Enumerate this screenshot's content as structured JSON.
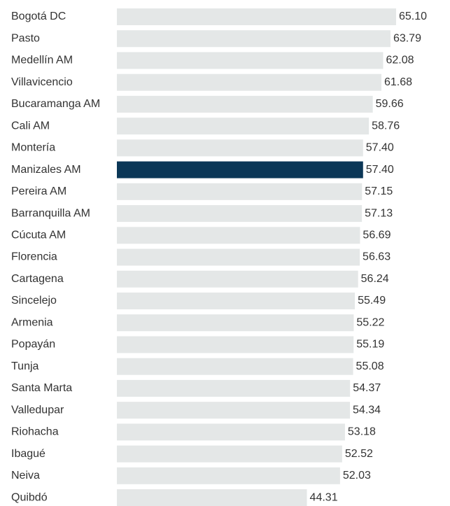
{
  "chart_data": {
    "type": "hbar",
    "categories": [
      "Bogotá DC",
      "Pasto",
      "Medellín AM",
      "Villavicencio",
      "Bucaramanga AM",
      "Cali AM",
      "Montería",
      "Manizales AM",
      "Pereira AM",
      "Barranquilla AM",
      "Cúcuta AM",
      "Florencia",
      "Cartagena",
      "Sincelejo",
      "Armenia",
      "Popayán",
      "Tunja",
      "Santa Marta",
      "Valledupar",
      "Riohacha",
      "Ibagué",
      "Neiva",
      "Quibdó"
    ],
    "values": [
      65.1,
      63.79,
      62.08,
      61.68,
      59.66,
      58.76,
      57.4,
      57.4,
      57.15,
      57.13,
      56.69,
      56.63,
      56.24,
      55.49,
      55.22,
      55.19,
      55.08,
      54.37,
      54.34,
      53.18,
      52.52,
      52.03,
      44.31
    ],
    "value_labels": [
      "65.10",
      "63.79",
      "62.08",
      "61.68",
      "59.66",
      "58.76",
      "57.40",
      "57.40",
      "57.15",
      "57.13",
      "56.69",
      "56.63",
      "56.24",
      "55.49",
      "55.22",
      "55.19",
      "55.08",
      "54.37",
      "54.34",
      "53.18",
      "52.52",
      "52.03",
      "44.31"
    ],
    "colors": [
      "#e4e7e7",
      "#e4e7e7",
      "#e4e7e7",
      "#e4e7e7",
      "#e4e7e7",
      "#e4e7e7",
      "#e4e7e7",
      "#0b3757",
      "#e4e7e7",
      "#e4e7e7",
      "#e4e7e7",
      "#e4e7e7",
      "#e4e7e7",
      "#e4e7e7",
      "#e4e7e7",
      "#e4e7e7",
      "#e4e7e7",
      "#e4e7e7",
      "#e4e7e7",
      "#e4e7e7",
      "#e4e7e7",
      "#e4e7e7",
      "#e4e7e7"
    ],
    "xlim": [
      0,
      70
    ]
  }
}
